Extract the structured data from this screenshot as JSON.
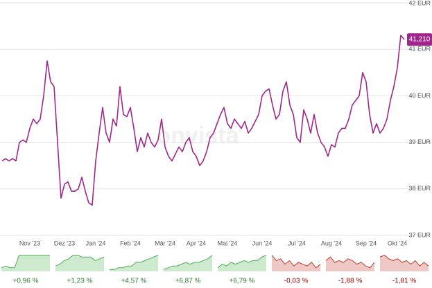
{
  "chart_data": [
    {
      "type": "line",
      "watermark": "onvista",
      "color": "#a0268c",
      "last_label": "41,210",
      "grid": true,
      "ylim": [
        37,
        42
      ],
      "yticks": [
        {
          "value": 37,
          "label": "37 EUR"
        },
        {
          "value": 38,
          "label": "38 EUR"
        },
        {
          "value": 39,
          "label": "39 EUR"
        },
        {
          "value": 40,
          "label": "40 EUR"
        },
        {
          "value": 41,
          "label": "41 EUR"
        },
        {
          "value": 42,
          "label": "42 EUR"
        }
      ],
      "categories": [
        null,
        null,
        null,
        null,
        null,
        null,
        null,
        null,
        "Nov '23",
        null,
        null,
        null,
        null,
        null,
        null,
        null,
        null,
        null,
        "Dez '23",
        null,
        null,
        null,
        null,
        null,
        null,
        null,
        null,
        "Jan '24",
        null,
        null,
        null,
        null,
        null,
        null,
        null,
        null,
        null,
        "Feb '24",
        null,
        null,
        null,
        null,
        null,
        null,
        null,
        null,
        null,
        "Mär '24",
        null,
        null,
        null,
        null,
        null,
        null,
        null,
        null,
        "Apr '24",
        null,
        null,
        null,
        null,
        null,
        null,
        null,
        null,
        "Mai '24",
        null,
        null,
        null,
        null,
        null,
        null,
        null,
        null,
        null,
        "Jun '24",
        null,
        null,
        null,
        null,
        null,
        null,
        null,
        null,
        null,
        "Jul '24",
        null,
        null,
        null,
        null,
        null,
        null,
        null,
        null,
        null,
        "Aug '24",
        null,
        null,
        null,
        null,
        null,
        null,
        null,
        null,
        null,
        "Sep '24",
        null,
        null,
        null,
        null,
        null,
        null,
        null,
        null,
        "Okt '24",
        null,
        null
      ],
      "values": [
        38.6,
        38.65,
        38.6,
        38.65,
        38.6,
        39.0,
        39.05,
        39.0,
        39.3,
        39.5,
        39.4,
        39.5,
        40.0,
        40.75,
        40.3,
        40.2,
        39.0,
        37.8,
        38.1,
        38.15,
        37.95,
        37.95,
        38.0,
        38.25,
        37.95,
        37.7,
        37.65,
        38.6,
        39.2,
        39.75,
        39.2,
        39.0,
        39.5,
        39.35,
        40.2,
        39.6,
        39.55,
        39.75,
        39.3,
        38.8,
        39.1,
        38.9,
        39.2,
        39.0,
        38.9,
        39.05,
        39.5,
        38.9,
        38.7,
        38.6,
        38.75,
        38.9,
        38.8,
        39.0,
        39.1,
        38.8,
        38.7,
        38.5,
        38.6,
        38.8,
        39.1,
        39.2,
        39.4,
        39.6,
        39.75,
        39.4,
        39.3,
        39.5,
        39.4,
        39.3,
        39.45,
        39.2,
        39.3,
        39.45,
        39.6,
        40.0,
        40.1,
        40.15,
        39.8,
        39.5,
        39.6,
        40.1,
        40.3,
        39.8,
        39.6,
        39.1,
        39.0,
        39.7,
        39.5,
        39.2,
        39.6,
        39.2,
        39.0,
        38.9,
        38.7,
        38.95,
        38.9,
        39.2,
        39.3,
        39.3,
        39.5,
        39.8,
        39.9,
        40.0,
        40.5,
        40.3,
        39.6,
        39.2,
        39.4,
        39.2,
        39.3,
        39.5,
        39.9,
        40.2,
        40.6,
        41.3,
        41.21
      ]
    },
    {
      "type": "sparklines",
      "ylim": [
        0,
        1
      ],
      "panels": [
        {
          "color": "#4caf50",
          "text_color": "#2e7d32",
          "value": 0.96,
          "value_label": "+0,96 %",
          "values": [
            0.2,
            0.3,
            0.2,
            0.2,
            0.9,
            0.9,
            0.9,
            0.9,
            0.9,
            0.9,
            0.9,
            0.9
          ]
        },
        {
          "color": "#4caf50",
          "text_color": "#2e7d32",
          "value": 1.23,
          "value_label": "+1,23 %",
          "values": [
            0.3,
            0.4,
            0.6,
            0.7,
            0.9,
            0.9,
            0.8,
            0.8,
            0.8,
            0.6,
            0.7,
            0.8
          ]
        },
        {
          "color": "#4caf50",
          "text_color": "#2e7d32",
          "value": 4.57,
          "value_label": "+4,57 %",
          "values": [
            0.1,
            0.1,
            0.2,
            0.2,
            0.3,
            0.3,
            0.5,
            0.5,
            0.6,
            0.7,
            0.8,
            0.9
          ]
        },
        {
          "color": "#4caf50",
          "text_color": "#2e7d32",
          "value": 6.87,
          "value_label": "+6,87 %",
          "values": [
            0.1,
            0.2,
            0.3,
            0.3,
            0.4,
            0.5,
            0.4,
            0.5,
            0.5,
            0.6,
            0.7,
            0.9
          ]
        },
        {
          "color": "#4caf50",
          "text_color": "#2e7d32",
          "value": 6.79,
          "value_label": "+6,79 %",
          "values": [
            0.2,
            0.4,
            0.3,
            0.5,
            0.4,
            0.5,
            0.6,
            0.5,
            0.6,
            0.6,
            0.8,
            0.9
          ]
        },
        {
          "color": "#c0392b",
          "text_color": "#a00000",
          "value": -0.03,
          "value_label": "-0,03 %",
          "values": [
            0.9,
            0.6,
            0.7,
            0.4,
            0.6,
            0.3,
            0.5,
            0.4,
            0.3,
            0.5,
            0.2,
            0.4
          ]
        },
        {
          "color": "#c0392b",
          "text_color": "#a00000",
          "value": -1.88,
          "value_label": "-1,88 %",
          "values": [
            0.6,
            0.8,
            0.5,
            0.6,
            0.5,
            0.7,
            0.6,
            0.4,
            0.5,
            0.3,
            0.2,
            0.5
          ]
        },
        {
          "color": "#c0392b",
          "text_color": "#a00000",
          "value": -1.81,
          "value_label": "-1,81 %",
          "values": [
            0.8,
            0.9,
            0.7,
            0.6,
            0.7,
            0.5,
            0.6,
            0.4,
            0.6,
            0.3,
            0.5,
            0.3
          ]
        }
      ]
    }
  ]
}
